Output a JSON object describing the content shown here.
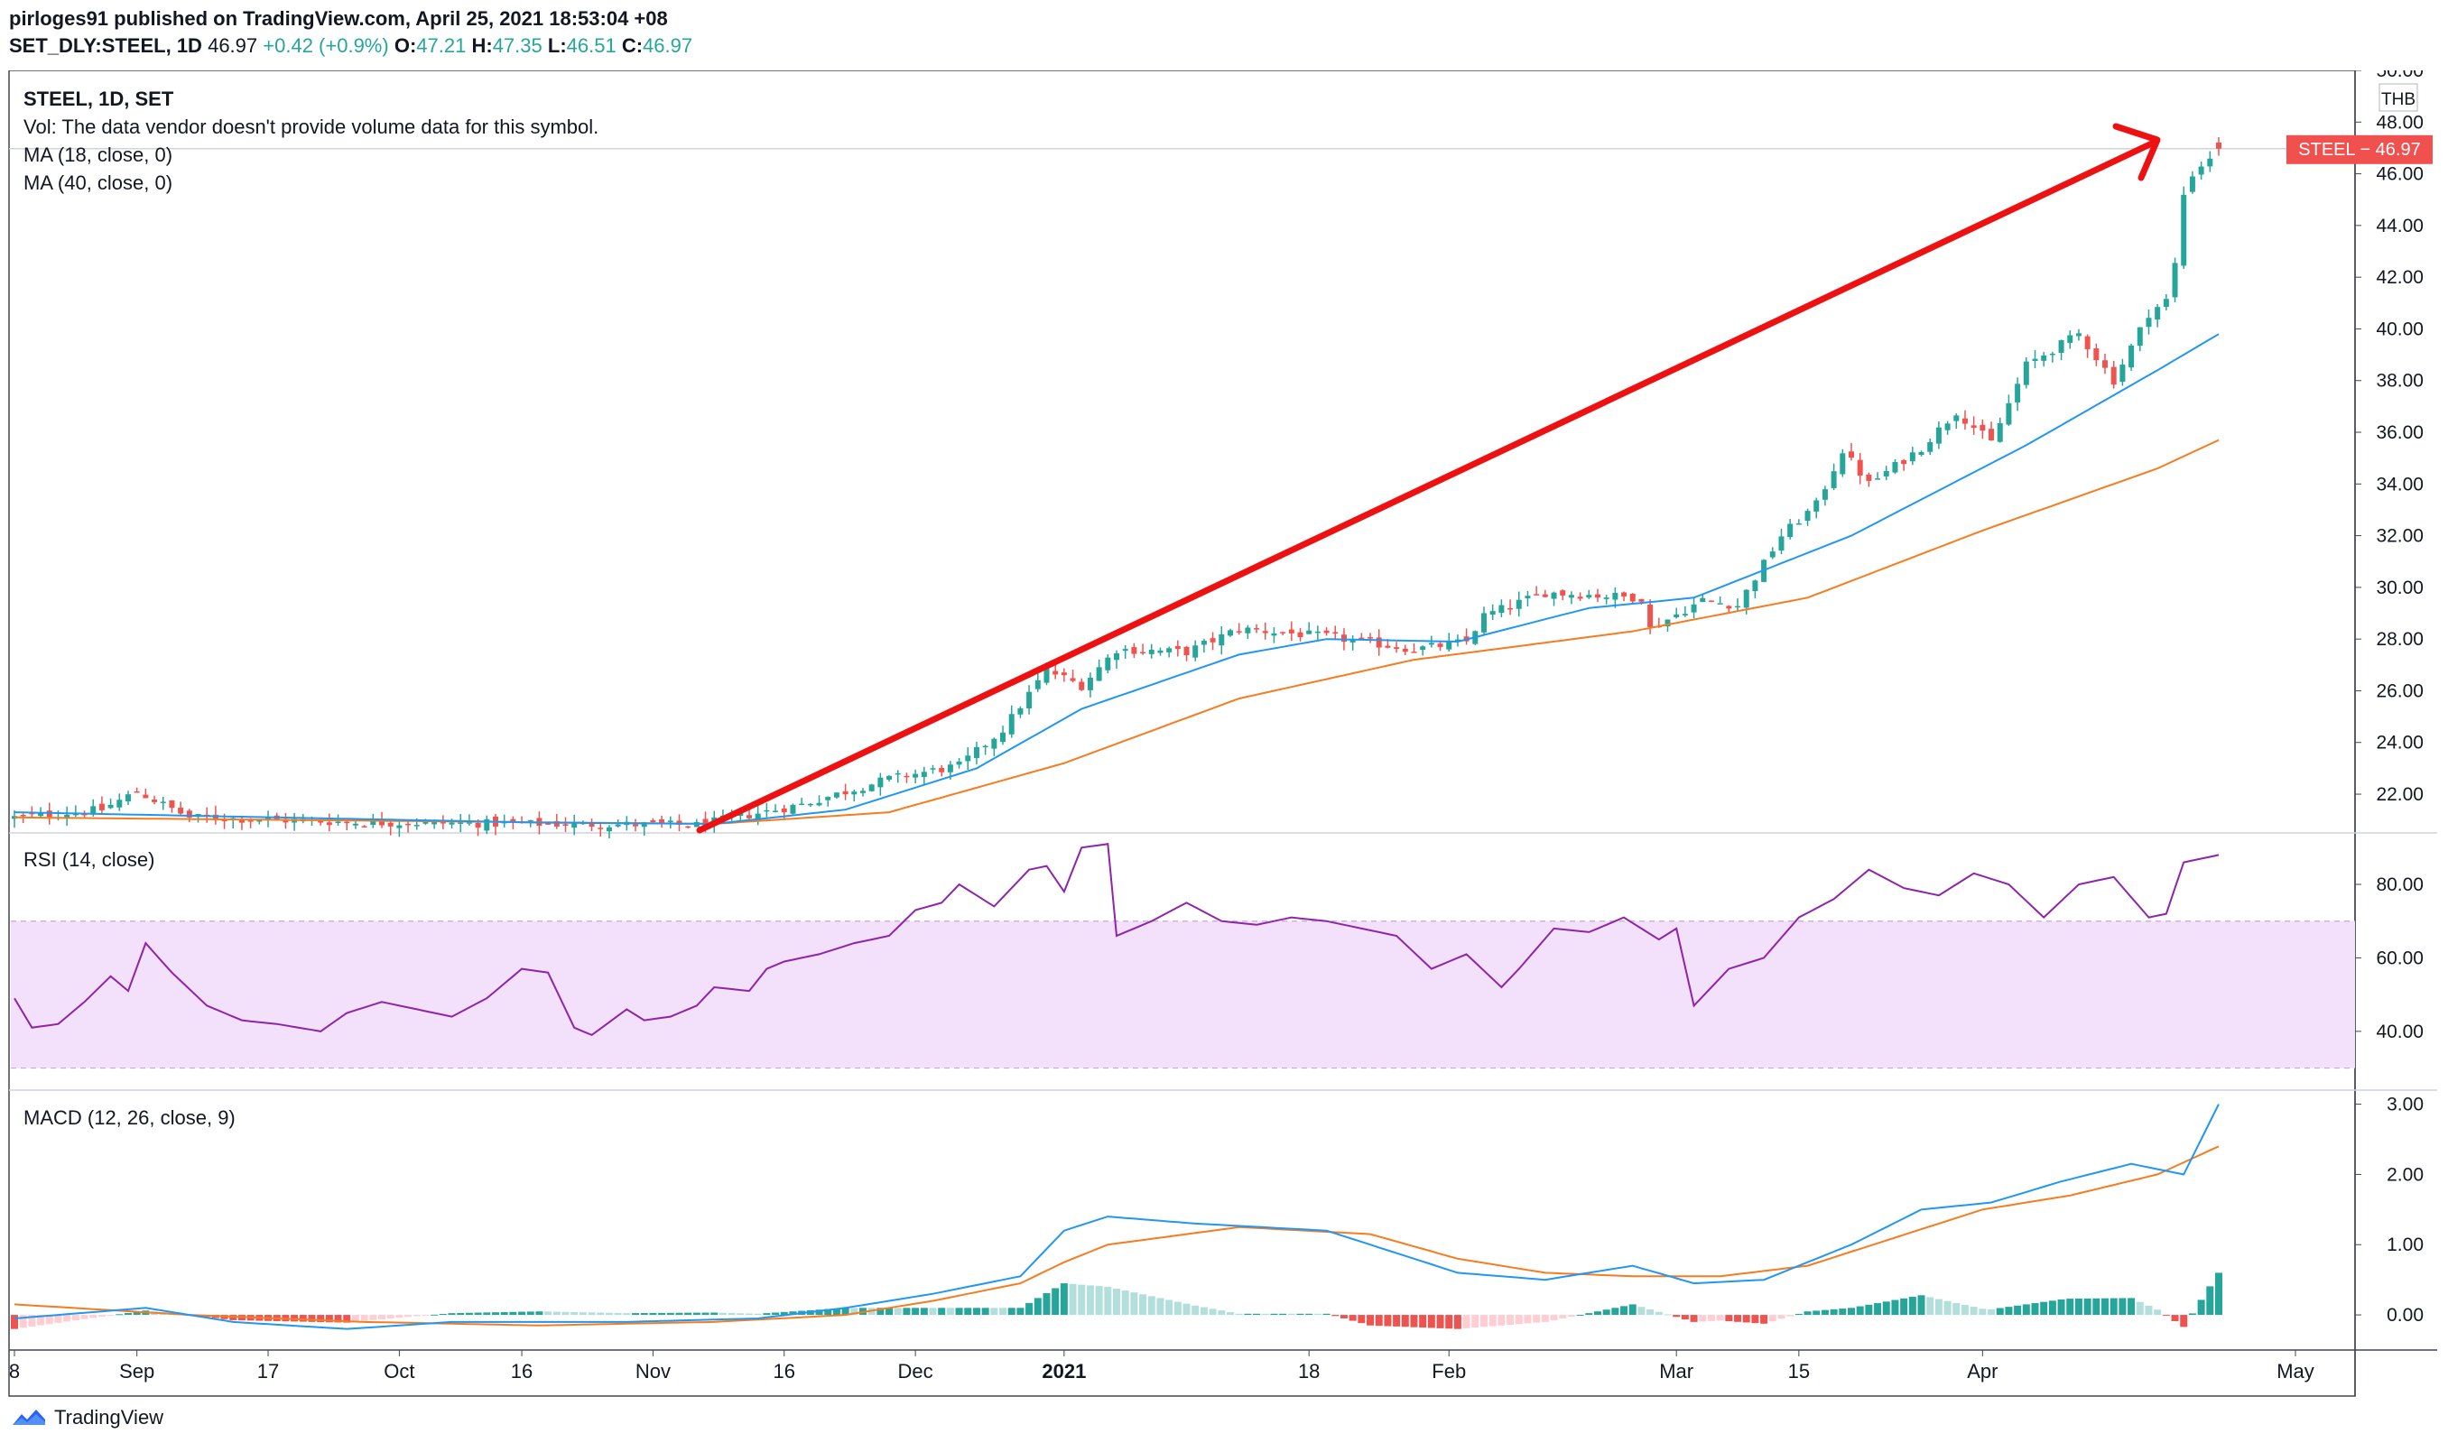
{
  "header": {
    "line1": "pirloges91 published on TradingView.com, April 25, 2021 18:53:04 +08",
    "symbol": "SET_DLY:STEEL, 1D",
    "last": "46.97",
    "change": "+0.42 (+0.9%)",
    "o_label": "O:",
    "o": "47.21",
    "h_label": "H:",
    "h": "47.35",
    "l_label": "L:",
    "l": "46.51",
    "c_label": "C:",
    "c": "46.97"
  },
  "legend": {
    "title": "STEEL, 1D, SET",
    "vol": "Vol: The data vendor doesn't provide volume data for this symbol.",
    "ma18": "MA (18, close, 0)",
    "ma40": "MA (40, close, 0)",
    "rsi": "RSI (14, close)",
    "macd": "MACD (12, 26, close, 9)"
  },
  "price_badge": "STEEL − 46.97",
  "currency": "THB",
  "footer": {
    "brand": "TradingView"
  },
  "colors": {
    "up": "#26a69a",
    "down": "#ef5350",
    "ma18": "#2196f3",
    "ma40": "#f57c20",
    "rsi": "#8e24aa",
    "rsi_band": "#f3e0fb",
    "arrow": "#ee1111",
    "hist_up_strong": "#26a69a",
    "hist_up_weak": "#b2dfdb",
    "hist_dn_strong": "#ef5350",
    "hist_dn_weak": "#ffcdd2"
  },
  "chart_data": [
    {
      "type": "candlestick",
      "title": "STEEL, 1D, SET",
      "x_ticks": [
        "8",
        "Sep",
        "17",
        "Oct",
        "16",
        "Nov",
        "16",
        "Dec",
        "2021",
        "18",
        "Feb",
        "Mar",
        "15",
        "Apr",
        "May"
      ],
      "y_ticks": [
        "22.00",
        "24.00",
        "26.00",
        "28.00",
        "30.00",
        "32.00",
        "34.00",
        "36.00",
        "38.00",
        "40.00",
        "42.00",
        "44.00",
        "46.00",
        "48.00",
        "50.00"
      ],
      "ylim": [
        20.5,
        50
      ],
      "last_price": 46.97,
      "close_waypoints": [
        [
          0,
          21.1
        ],
        [
          10,
          21.4
        ],
        [
          14,
          22.1
        ],
        [
          20,
          21.1
        ],
        [
          40,
          20.9
        ],
        [
          60,
          20.85
        ],
        [
          78,
          20.8
        ],
        [
          90,
          21.6
        ],
        [
          100,
          22.6
        ],
        [
          108,
          23.1
        ],
        [
          113,
          24.5
        ],
        [
          118,
          26.8
        ],
        [
          122,
          26.2
        ],
        [
          126,
          27.6
        ],
        [
          134,
          27.5
        ],
        [
          140,
          28.4
        ],
        [
          150,
          28.1
        ],
        [
          160,
          27.6
        ],
        [
          166,
          27.9
        ],
        [
          168,
          28.9
        ],
        [
          175,
          29.8
        ],
        [
          186,
          29.6
        ],
        [
          187,
          28.4
        ],
        [
          193,
          29.5
        ],
        [
          197,
          29.3
        ],
        [
          202,
          32.0
        ],
        [
          206,
          33.2
        ],
        [
          209,
          35.3
        ],
        [
          212,
          34.0
        ],
        [
          218,
          35.4
        ],
        [
          222,
          36.8
        ],
        [
          226,
          35.6
        ],
        [
          230,
          38.6
        ],
        [
          236,
          39.8
        ],
        [
          240,
          38.0
        ],
        [
          244,
          40.6
        ],
        [
          246,
          41.1
        ],
        [
          247,
          42.5
        ],
        [
          248,
          45.2
        ],
        [
          249,
          46.0
        ],
        [
          252,
          46.97
        ]
      ],
      "ma18": [
        [
          0,
          21.3
        ],
        [
          60,
          20.9
        ],
        [
          80,
          20.85
        ],
        [
          95,
          21.4
        ],
        [
          110,
          23.0
        ],
        [
          122,
          25.3
        ],
        [
          140,
          27.4
        ],
        [
          150,
          28.0
        ],
        [
          165,
          27.9
        ],
        [
          180,
          29.2
        ],
        [
          192,
          29.6
        ],
        [
          210,
          32.0
        ],
        [
          230,
          35.5
        ],
        [
          245,
          38.4
        ],
        [
          252,
          39.8
        ]
      ],
      "ma40": [
        [
          0,
          21.1
        ],
        [
          80,
          20.85
        ],
        [
          100,
          21.3
        ],
        [
          120,
          23.2
        ],
        [
          140,
          25.7
        ],
        [
          160,
          27.2
        ],
        [
          185,
          28.3
        ],
        [
          205,
          29.6
        ],
        [
          225,
          32.2
        ],
        [
          245,
          34.6
        ],
        [
          252,
          35.7
        ]
      ]
    },
    {
      "type": "line",
      "title": "RSI (14, close)",
      "y_ticks": [
        "40.00",
        "60.00",
        "80.00"
      ],
      "ylim": [
        24,
        94
      ],
      "band": [
        30,
        70
      ],
      "values_waypoints": [
        [
          0,
          49
        ],
        [
          2,
          41
        ],
        [
          5,
          42
        ],
        [
          8,
          48
        ],
        [
          11,
          55
        ],
        [
          13,
          51
        ],
        [
          15,
          64
        ],
        [
          18,
          56
        ],
        [
          22,
          47
        ],
        [
          26,
          43
        ],
        [
          30,
          42
        ],
        [
          35,
          40
        ],
        [
          38,
          45
        ],
        [
          42,
          48
        ],
        [
          46,
          46
        ],
        [
          50,
          44
        ],
        [
          54,
          49
        ],
        [
          58,
          57
        ],
        [
          61,
          56
        ],
        [
          64,
          41
        ],
        [
          66,
          39
        ],
        [
          70,
          46
        ],
        [
          72,
          43
        ],
        [
          75,
          44
        ],
        [
          78,
          47
        ],
        [
          80,
          52
        ],
        [
          84,
          51
        ],
        [
          86,
          57
        ],
        [
          88,
          59
        ],
        [
          92,
          61
        ],
        [
          96,
          64
        ],
        [
          100,
          66
        ],
        [
          103,
          73
        ],
        [
          106,
          75
        ],
        [
          108,
          80
        ],
        [
          112,
          74
        ],
        [
          116,
          84
        ],
        [
          118,
          85
        ],
        [
          120,
          78
        ],
        [
          122,
          90
        ],
        [
          125,
          91
        ],
        [
          126,
          66
        ],
        [
          130,
          70
        ],
        [
          134,
          75
        ],
        [
          138,
          70
        ],
        [
          142,
          69
        ],
        [
          146,
          71
        ],
        [
          150,
          70
        ],
        [
          154,
          68
        ],
        [
          158,
          66
        ],
        [
          162,
          57
        ],
        [
          166,
          61
        ],
        [
          170,
          52
        ],
        [
          172,
          57
        ],
        [
          176,
          68
        ],
        [
          180,
          67
        ],
        [
          184,
          71
        ],
        [
          188,
          65
        ],
        [
          190,
          68
        ],
        [
          192,
          47
        ],
        [
          196,
          57
        ],
        [
          200,
          60
        ],
        [
          204,
          71
        ],
        [
          208,
          76
        ],
        [
          212,
          84
        ],
        [
          216,
          79
        ],
        [
          220,
          77
        ],
        [
          224,
          83
        ],
        [
          228,
          80
        ],
        [
          232,
          71
        ],
        [
          236,
          80
        ],
        [
          240,
          82
        ],
        [
          244,
          71
        ],
        [
          246,
          72
        ],
        [
          248,
          86
        ],
        [
          252,
          88
        ]
      ]
    },
    {
      "type": "line",
      "title": "MACD (12, 26, close, 9)",
      "y_ticks": [
        "0.00",
        "1.00",
        "2.00",
        "3.00"
      ],
      "ylim": [
        -0.5,
        3.2
      ],
      "macd_waypoints": [
        [
          0,
          -0.05
        ],
        [
          15,
          0.1
        ],
        [
          25,
          -0.1
        ],
        [
          38,
          -0.2
        ],
        [
          50,
          -0.1
        ],
        [
          70,
          -0.1
        ],
        [
          85,
          -0.05
        ],
        [
          95,
          0.1
        ],
        [
          105,
          0.3
        ],
        [
          115,
          0.55
        ],
        [
          120,
          1.2
        ],
        [
          125,
          1.4
        ],
        [
          135,
          1.3
        ],
        [
          150,
          1.2
        ],
        [
          165,
          0.6
        ],
        [
          175,
          0.5
        ],
        [
          185,
          0.7
        ],
        [
          192,
          0.45
        ],
        [
          200,
          0.5
        ],
        [
          210,
          1.0
        ],
        [
          218,
          1.5
        ],
        [
          226,
          1.6
        ],
        [
          234,
          1.9
        ],
        [
          242,
          2.15
        ],
        [
          248,
          2.0
        ],
        [
          252,
          3.0
        ]
      ],
      "signal_waypoints": [
        [
          0,
          0.15
        ],
        [
          20,
          0.0
        ],
        [
          40,
          -0.1
        ],
        [
          60,
          -0.15
        ],
        [
          80,
          -0.1
        ],
        [
          95,
          0.0
        ],
        [
          105,
          0.2
        ],
        [
          115,
          0.45
        ],
        [
          120,
          0.75
        ],
        [
          125,
          1.0
        ],
        [
          140,
          1.25
        ],
        [
          155,
          1.15
        ],
        [
          165,
          0.8
        ],
        [
          175,
          0.6
        ],
        [
          185,
          0.55
        ],
        [
          195,
          0.55
        ],
        [
          205,
          0.7
        ],
        [
          215,
          1.1
        ],
        [
          225,
          1.5
        ],
        [
          235,
          1.7
        ],
        [
          245,
          2.0
        ],
        [
          252,
          2.4
        ]
      ]
    }
  ]
}
